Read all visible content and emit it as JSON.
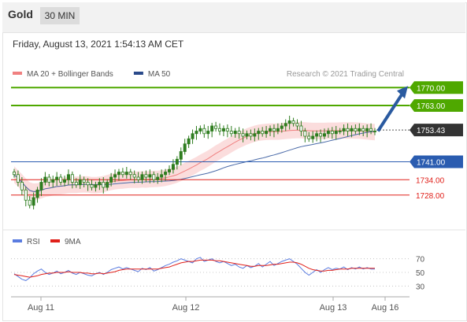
{
  "header": {
    "title": "Gold",
    "timeframe": "30 MIN"
  },
  "datetime": "Friday, August 13, 2021 1:54:13 AM CET",
  "copyright": "Research © 2021 Trading Central",
  "colors": {
    "green": "#4fa800",
    "blue": "#2a5cb0",
    "red": "#e0201a",
    "candle": "#2e7d1f",
    "band": "#f9c6c6"
  },
  "chart_data": [
    {
      "type": "candlestick",
      "legend": [
        {
          "name": "MA 20 + Bollinger Bands",
          "color": "#f08080"
        },
        {
          "name": "MA 50",
          "color": "#2a4a8a"
        }
      ],
      "legend_placement": "top-left",
      "ylim": [
        1715,
        1775
      ],
      "x_ticks": [
        "Aug 11",
        "Aug 12",
        "Aug 13",
        "Aug 16"
      ],
      "levels": [
        {
          "value": 1770.0,
          "label": "1770.00",
          "color": "#4fa800",
          "kind": "resistance"
        },
        {
          "value": 1763.0,
          "label": "1763.00",
          "color": "#4fa800",
          "kind": "resistance"
        },
        {
          "value": 1753.43,
          "label": "1753.43",
          "color": "#333333",
          "kind": "last"
        },
        {
          "value": 1741.0,
          "label": "1741.00",
          "color": "#2a5cb0",
          "kind": "pivot"
        },
        {
          "value": 1734.0,
          "label": "1734.00",
          "color": "#e0201a",
          "kind": "support"
        },
        {
          "value": 1728.0,
          "label": "1728.00",
          "color": "#e0201a",
          "kind": "support"
        }
      ],
      "close": [
        1736,
        1733,
        1730,
        1726,
        1724,
        1727,
        1730,
        1733,
        1735,
        1733,
        1734,
        1735,
        1733,
        1734,
        1736,
        1733,
        1732,
        1734,
        1733,
        1732,
        1731,
        1732,
        1733,
        1731,
        1733,
        1735,
        1736,
        1737,
        1736,
        1737,
        1736,
        1735,
        1734,
        1736,
        1735,
        1736,
        1734,
        1735,
        1736,
        1737,
        1738,
        1740,
        1742,
        1745,
        1748,
        1750,
        1752,
        1753,
        1754,
        1752,
        1753,
        1755,
        1754,
        1753,
        1754,
        1753,
        1752,
        1753,
        1752,
        1751,
        1752,
        1751,
        1752,
        1753,
        1752,
        1753,
        1754,
        1753,
        1754,
        1755,
        1756,
        1757,
        1756,
        1755,
        1753,
        1751,
        1750,
        1751,
        1752,
        1751,
        1752,
        1753,
        1752,
        1753,
        1753,
        1754,
        1753,
        1754,
        1753,
        1754,
        1753,
        1754,
        1753,
        1753
      ]
    },
    {
      "type": "line",
      "legend": [
        {
          "name": "RSI",
          "color": "#5a7ce0"
        },
        {
          "name": "9MA",
          "color": "#e0201a"
        }
      ],
      "ylim": [
        20,
        80
      ],
      "y_ticks": [
        70,
        50,
        30
      ],
      "series": [
        {
          "name": "RSI",
          "values": [
            48,
            44,
            40,
            38,
            42,
            48,
            52,
            55,
            50,
            47,
            49,
            52,
            48,
            50,
            53,
            49,
            47,
            50,
            48,
            46,
            45,
            48,
            50,
            47,
            50,
            54,
            56,
            58,
            55,
            57,
            55,
            53,
            51,
            56,
            54,
            57,
            52,
            54,
            57,
            60,
            62,
            65,
            67,
            70,
            68,
            66,
            64,
            70,
            72,
            66,
            68,
            70,
            66,
            64,
            66,
            63,
            60,
            62,
            58,
            56,
            60,
            57,
            59,
            63,
            58,
            62,
            66,
            60,
            63,
            66,
            68,
            70,
            66,
            62,
            56,
            50,
            46,
            50,
            54,
            50,
            54,
            57,
            54,
            56,
            55,
            58,
            54,
            57,
            55,
            58,
            55,
            57,
            55,
            55
          ]
        },
        {
          "name": "9MA",
          "values": [
            47,
            46,
            45,
            44,
            43,
            44,
            45,
            47,
            48,
            49,
            49,
            50,
            50,
            50,
            51,
            50,
            50,
            50,
            49,
            49,
            48,
            48,
            49,
            48,
            49,
            50,
            51,
            53,
            54,
            55,
            55,
            55,
            55,
            55,
            55,
            55,
            55,
            55,
            56,
            57,
            58,
            60,
            62,
            64,
            65,
            66,
            66,
            67,
            68,
            68,
            68,
            68,
            67,
            67,
            66,
            65,
            64,
            63,
            62,
            61,
            60,
            59,
            59,
            60,
            60,
            60,
            61,
            62,
            62,
            63,
            64,
            65,
            65,
            64,
            62,
            59,
            56,
            54,
            53,
            52,
            52,
            53,
            53,
            54,
            55,
            55,
            55,
            56,
            56,
            56,
            56,
            56,
            56,
            56
          ]
        }
      ]
    }
  ]
}
